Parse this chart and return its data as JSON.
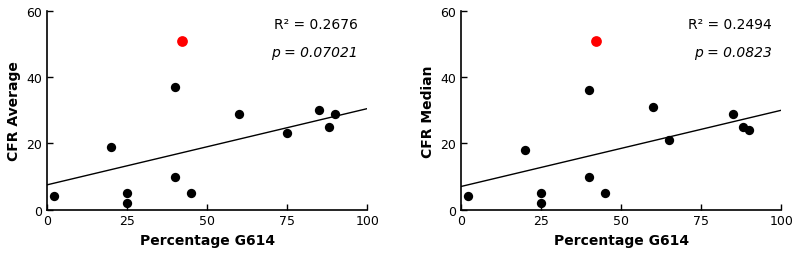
{
  "plot1": {
    "ylabel": "CFR Average",
    "xlabel": "Percentage G614",
    "r2": "R² = 0.2676",
    "pval": "p = 0.07021",
    "black_x": [
      2,
      20,
      25,
      25,
      40,
      40,
      45,
      60,
      75,
      85,
      88,
      90
    ],
    "black_y": [
      4,
      19,
      5,
      2,
      37,
      10,
      5,
      29,
      23,
      30,
      25,
      29
    ],
    "red_x": [
      42
    ],
    "red_y": [
      51
    ],
    "line_x": [
      0,
      100
    ],
    "line_y": [
      7.5,
      30.5
    ],
    "xlim": [
      0,
      100
    ],
    "ylim": [
      0,
      60
    ],
    "xticks": [
      0,
      25,
      50,
      75,
      100
    ],
    "yticks": [
      0,
      20,
      40,
      60
    ]
  },
  "plot2": {
    "ylabel": "CFR Median",
    "xlabel": "Percentage G614",
    "r2": "R² = 0.2494",
    "pval": "p = 0.0823",
    "black_x": [
      2,
      20,
      25,
      25,
      40,
      40,
      45,
      60,
      65,
      85,
      88,
      90
    ],
    "black_y": [
      4,
      18,
      5,
      2,
      36,
      10,
      5,
      31,
      21,
      29,
      25,
      24
    ],
    "red_x": [
      42
    ],
    "red_y": [
      51
    ],
    "line_x": [
      0,
      100
    ],
    "line_y": [
      7.0,
      30.0
    ],
    "xlim": [
      0,
      100
    ],
    "ylim": [
      0,
      60
    ],
    "xticks": [
      0,
      25,
      50,
      75,
      100
    ],
    "yticks": [
      0,
      20,
      40,
      60
    ]
  },
  "dot_size": 45,
  "red_dot_size": 60,
  "dot_color": "#000000",
  "red_dot_color": "#FF0000",
  "line_color": "#000000",
  "annotation_color": "#000000",
  "axis_label_fontsize": 10,
  "tick_fontsize": 9,
  "annotation_fontsize": 10,
  "background_color": "#ffffff",
  "figsize": [
    8.0,
    2.55
  ],
  "dpi": 100
}
